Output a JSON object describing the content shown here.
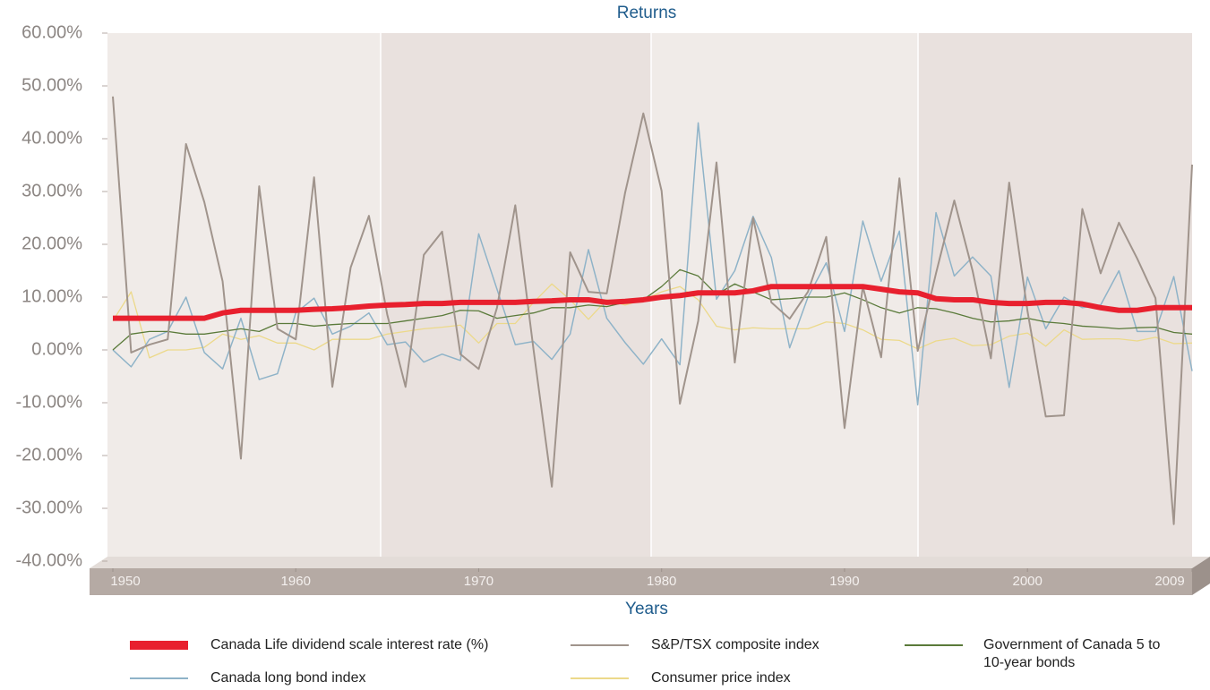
{
  "chart_data": {
    "type": "line",
    "title": "Returns",
    "x_label": "Years",
    "x": [
      1950,
      1951,
      1952,
      1953,
      1954,
      1955,
      1956,
      1957,
      1958,
      1959,
      1960,
      1961,
      1962,
      1963,
      1964,
      1965,
      1966,
      1967,
      1968,
      1969,
      1970,
      1971,
      1972,
      1973,
      1974,
      1975,
      1976,
      1977,
      1978,
      1979,
      1980,
      1981,
      1982,
      1983,
      1984,
      1985,
      1986,
      1987,
      1988,
      1989,
      1990,
      1991,
      1992,
      1993,
      1994,
      1995,
      1996,
      1997,
      1998,
      1999,
      2000,
      2001,
      2002,
      2003,
      2004,
      2005,
      2006,
      2007,
      2008,
      2009
    ],
    "xlim": [
      1950,
      2009
    ],
    "xticks": [
      1950,
      1960,
      1970,
      1980,
      1990,
      2000,
      2009
    ],
    "ylim": [
      -40,
      60
    ],
    "yticks": [
      {
        "value": -40,
        "label": "-40.00%"
      },
      {
        "value": -30,
        "label": "-30.00%"
      },
      {
        "value": -20,
        "label": "-20.00%"
      },
      {
        "value": -10,
        "label": "-10.00%"
      },
      {
        "value": 0,
        "label": "0.00%"
      },
      {
        "value": 10,
        "label": "10.00%"
      },
      {
        "value": 20,
        "label": "20.00%"
      },
      {
        "value": 30,
        "label": "30.00%"
      },
      {
        "value": 40,
        "label": "40.00%"
      },
      {
        "value": 50,
        "label": "50.00%"
      },
      {
        "value": 60,
        "label": "60.00%"
      }
    ],
    "grid": false,
    "series": [
      {
        "name": "Canada Life dividend scale interest rate (%)",
        "color": "#e8202e",
        "width": 6,
        "values": [
          6,
          6,
          6,
          6,
          6,
          6,
          7,
          7.5,
          7.5,
          7.5,
          7.5,
          7.7,
          7.8,
          8,
          8.3,
          8.5,
          8.6,
          8.8,
          8.8,
          9,
          9,
          9,
          9,
          9.2,
          9.3,
          9.5,
          9.5,
          9,
          9.2,
          9.5,
          10,
          10.3,
          10.8,
          10.8,
          10.8,
          11.2,
          12,
          12,
          12,
          12,
          12,
          12,
          11.5,
          11,
          10.8,
          9.7,
          9.5,
          9.5,
          9,
          8.8,
          8.8,
          9,
          9,
          8.7,
          8,
          7.5,
          7.5,
          8,
          8,
          8
        ]
      },
      {
        "name": "S&P/TSX composite index",
        "color": "#a0948c",
        "width": 2,
        "values": [
          48,
          -0.5,
          1,
          2,
          39,
          28,
          13,
          -20.6,
          31,
          4,
          2,
          32.7,
          -7,
          15.6,
          25.4,
          6.7,
          -7,
          18,
          22.4,
          -0.8,
          -3.6,
          8,
          27.4,
          0,
          -25.9,
          18.5,
          11,
          10.7,
          29.7,
          44.8,
          30.1,
          -10.2,
          5.5,
          35.5,
          -2.4,
          25,
          9,
          5.9,
          11,
          21.4,
          -14.8,
          12,
          -1.4,
          32.5,
          -0.2,
          14.5,
          28.3,
          15,
          -1.6,
          31.7,
          7.4,
          -12.6,
          -12.4,
          26.7,
          14.5,
          24.1,
          17.3,
          9.8,
          -33,
          35.1
        ]
      },
      {
        "name": "Government of Canada 5 to 10-year bonds",
        "color": "#5a7a3a",
        "width": 1.3,
        "values": [
          0,
          3,
          3.5,
          3.5,
          3,
          3,
          3.5,
          4,
          3.5,
          5,
          5,
          4.5,
          4.8,
          5,
          5,
          5,
          5.5,
          6,
          6.5,
          7.5,
          7.4,
          6,
          6.5,
          7,
          8,
          8,
          8.5,
          8.2,
          9,
          9.5,
          12,
          15.2,
          14,
          10.5,
          12.5,
          11,
          9.5,
          9.7,
          10,
          10,
          10.8,
          9.5,
          8,
          7,
          8,
          7.8,
          7,
          6,
          5.3,
          5.5,
          6,
          5.3,
          5,
          4.5,
          4.3,
          4,
          4.2,
          4.3,
          3.3,
          3
        ]
      },
      {
        "name": "Canada long bond index",
        "color": "#8fb3c8",
        "width": 1.5,
        "values": [
          0,
          -3.2,
          2,
          3.5,
          10,
          -0.5,
          -3.6,
          6,
          -5.6,
          -4.5,
          7,
          9.8,
          3,
          4.5,
          7,
          1,
          1.5,
          -2.3,
          -0.8,
          -2,
          22,
          11.5,
          1,
          1.6,
          -1.8,
          3,
          19,
          6,
          1.4,
          -2.7,
          2.1,
          -2.8,
          43,
          9.6,
          15,
          25.3,
          17.5,
          0.4,
          10,
          16.5,
          3.5,
          24.4,
          13,
          22.5,
          -10.4,
          26,
          14,
          17.6,
          14,
          -7.1,
          13.8,
          4,
          10,
          8,
          8.5,
          15,
          3.5,
          3.5,
          13.9,
          -4
        ]
      },
      {
        "name": "Consumer price index",
        "color": "#ecd98a",
        "width": 1.3,
        "values": [
          5.5,
          11,
          -1.5,
          0,
          0,
          0.5,
          3,
          2,
          2.7,
          1.3,
          1.3,
          0,
          2,
          2,
          2,
          3,
          3.5,
          4,
          4.3,
          4.7,
          1.3,
          5,
          5,
          9,
          12.5,
          9.5,
          5.8,
          9.5,
          8.5,
          9.5,
          11,
          12,
          9.5,
          4.5,
          3.8,
          4.2,
          4,
          4,
          4,
          5.3,
          5,
          3.8,
          2,
          1.8,
          0.2,
          1.7,
          2.2,
          0.8,
          1,
          2.6,
          3.2,
          0.7,
          3.8,
          2,
          2.1,
          2.1,
          1.7,
          2.4,
          1.2,
          1.3
        ]
      }
    ]
  }
}
